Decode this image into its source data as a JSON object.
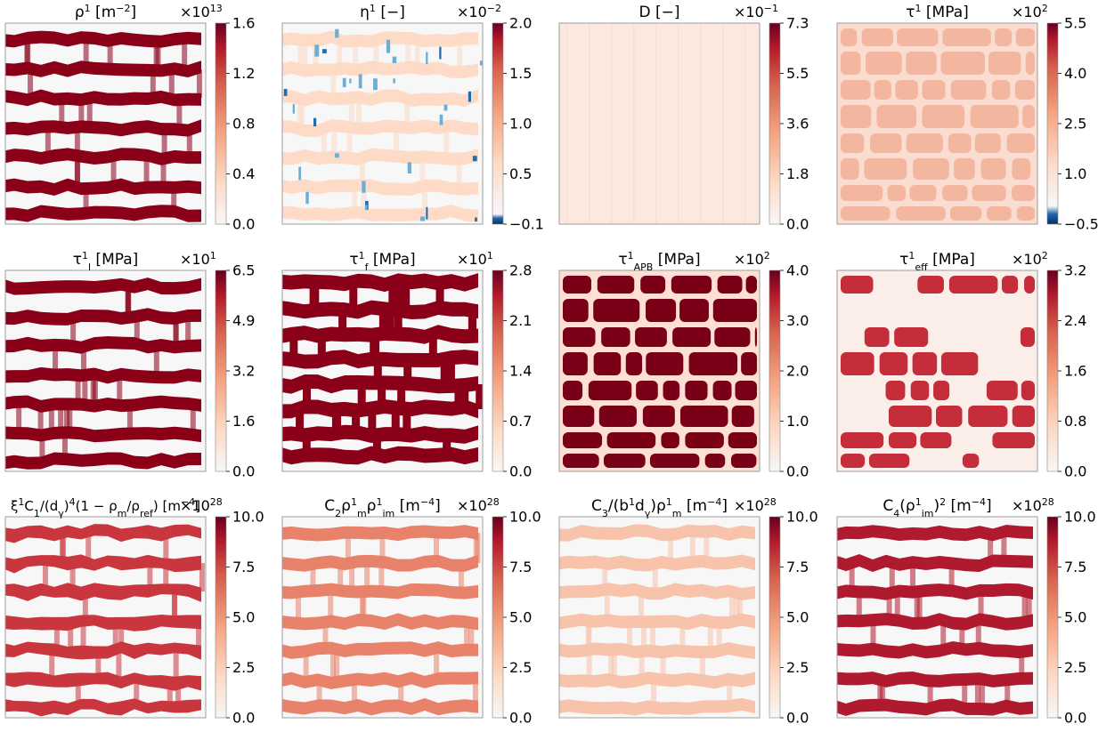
{
  "colors": {
    "dark_red": "#8b0019",
    "mid_red": "#c9363e",
    "light_red": "#f4a582",
    "pale": "#fddbc7",
    "blank": "#f7f7f7",
    "neg_blue": "#1f6eb0",
    "frame": "#9e9e9e"
  },
  "chart_data": [
    {
      "type": "heatmap",
      "title_parts": [
        [
          "ρ"
        ],
        [
          "1",
          "sup"
        ],
        [
          " [m"
        ],
        [
          "−2",
          "sup"
        ],
        [
          "]"
        ]
      ],
      "multiplier": "×10",
      "multiplier_exp": "13",
      "ticks": [
        "0.0",
        "0.4",
        "0.8",
        "1.2",
        "1.6"
      ],
      "vmin": 0,
      "vmax": 1.6,
      "pattern": "bands",
      "band_color": "dark_red",
      "diverging": false
    },
    {
      "type": "heatmap",
      "title_parts": [
        [
          "η"
        ],
        [
          "1",
          "sup"
        ],
        [
          " [−]"
        ]
      ],
      "multiplier": "×10",
      "multiplier_exp": "−2",
      "ticks": [
        "−0.1",
        "0.5",
        "1.0",
        "1.5",
        "2.0"
      ],
      "vmin": -0.1,
      "vmax": 2.0,
      "pattern": "bands",
      "band_color": "pale",
      "blue_specks": true,
      "diverging": true
    },
    {
      "type": "heatmap",
      "title_parts": [
        [
          "D [−]"
        ]
      ],
      "multiplier": "×10",
      "multiplier_exp": "−1",
      "ticks": [
        "0.0",
        "1.8",
        "3.6",
        "5.5",
        "7.3"
      ],
      "vmin": 0,
      "vmax": 7.3,
      "pattern": "uniform",
      "fill_color": "#fbe8df",
      "diverging": false
    },
    {
      "type": "heatmap",
      "title_parts": [
        [
          "τ"
        ],
        [
          "1",
          "sup"
        ],
        [
          " [MPa]"
        ]
      ],
      "multiplier": "×10",
      "multiplier_exp": "2",
      "ticks": [
        "−0.5",
        "1.0",
        "2.5",
        "4.0",
        "5.5"
      ],
      "vmin": -0.5,
      "vmax": 5.5,
      "pattern": "cells",
      "cell_color": "#f3b7a0",
      "gap_color": "#fbdcd0",
      "diverging": true
    },
    {
      "type": "heatmap",
      "title_parts": [
        [
          "τ"
        ],
        [
          "1",
          "sup-l"
        ],
        [
          "l",
          "sub"
        ],
        [
          " [MPa]"
        ]
      ],
      "multiplier": "×10",
      "multiplier_exp": "1",
      "ticks": [
        "0.0",
        "1.6",
        "3.2",
        "4.9",
        "6.5"
      ],
      "vmin": 0,
      "vmax": 6.5,
      "pattern": "bands",
      "band_color": "dark_red",
      "diverging": false
    },
    {
      "type": "heatmap",
      "title_parts": [
        [
          "τ"
        ],
        [
          "1",
          "sup-l"
        ],
        [
          "f",
          "sub"
        ],
        [
          " [MPa]"
        ]
      ],
      "multiplier": "×10",
      "multiplier_exp": "1",
      "ticks": [
        "0.0",
        "0.7",
        "1.4",
        "2.1",
        "2.8"
      ],
      "vmin": 0,
      "vmax": 2.8,
      "pattern": "bands_thick",
      "band_color": "dark_red",
      "diverging": false
    },
    {
      "type": "heatmap",
      "title_parts": [
        [
          "τ"
        ],
        [
          "1",
          "sup-l"
        ],
        [
          "APB",
          "sub"
        ],
        [
          " [MPa]"
        ]
      ],
      "multiplier": "×10",
      "multiplier_exp": "2",
      "ticks": [
        "0.0",
        "1.0",
        "2.0",
        "3.0",
        "4.0"
      ],
      "vmin": 0,
      "vmax": 4.0,
      "pattern": "cells",
      "cell_color": "#7a0018",
      "gap_color": "#fde0d3",
      "diverging": false
    },
    {
      "type": "heatmap",
      "title_parts": [
        [
          "τ"
        ],
        [
          "1",
          "sup-l"
        ],
        [
          "eff",
          "sub"
        ],
        [
          " [MPa]"
        ]
      ],
      "multiplier": "×10",
      "multiplier_exp": "2",
      "ticks": [
        "0.0",
        "0.8",
        "1.6",
        "2.4",
        "3.2"
      ],
      "vmin": 0,
      "vmax": 3.2,
      "pattern": "cells_sparse",
      "cell_color": "#c52d3a",
      "gap_color": "#fbeee8",
      "diverging": false
    },
    {
      "type": "heatmap",
      "title_parts": [
        [
          "ξ"
        ],
        [
          "1",
          "sup"
        ],
        [
          "C"
        ],
        [
          "1",
          "sub"
        ],
        [
          "/(d"
        ],
        [
          "γ",
          "sub"
        ],
        [
          ")"
        ],
        [
          "4",
          "sup"
        ],
        [
          "(1 − ρ"
        ],
        [
          "m",
          "sub"
        ],
        [
          "/ρ"
        ],
        [
          "ref",
          "sub"
        ],
        [
          ") [m"
        ],
        [
          "−4",
          "sup"
        ],
        [
          "]"
        ]
      ],
      "multiplier": "×10",
      "multiplier_exp": "28",
      "ticks": [
        "0.0",
        "2.5",
        "5.0",
        "7.5",
        "10.0"
      ],
      "vmin": 0,
      "vmax": 10,
      "pattern": "bands_jagged",
      "band_color": "mid_red",
      "diverging": false
    },
    {
      "type": "heatmap",
      "title_parts": [
        [
          "C"
        ],
        [
          "2",
          "sub"
        ],
        [
          "ρ"
        ],
        [
          "1",
          "sup-l"
        ],
        [
          "m",
          "sub"
        ],
        [
          "ρ"
        ],
        [
          "1",
          "sup-l"
        ],
        [
          "im",
          "sub"
        ],
        [
          " [m"
        ],
        [
          "−4",
          "sup"
        ],
        [
          "]"
        ]
      ],
      "multiplier": "×10",
      "multiplier_exp": "28",
      "ticks": [
        "0.0",
        "2.5",
        "5.0",
        "7.5",
        "10.0"
      ],
      "vmin": 0,
      "vmax": 10,
      "pattern": "bands",
      "band_color": "#e8826a",
      "diverging": false
    },
    {
      "type": "heatmap",
      "title_parts": [
        [
          "C"
        ],
        [
          "3",
          "sub"
        ],
        [
          "/(b"
        ],
        [
          "1",
          "sup"
        ],
        [
          "d"
        ],
        [
          "γ",
          "sub"
        ],
        [
          ")ρ"
        ],
        [
          "1",
          "sup-l"
        ],
        [
          "m",
          "sub"
        ],
        [
          " [m"
        ],
        [
          "−4",
          "sup"
        ],
        [
          "]"
        ]
      ],
      "multiplier": "×10",
      "multiplier_exp": "28",
      "ticks": [
        "0.0",
        "2.5",
        "5.0",
        "7.5",
        "10.0"
      ],
      "vmin": 0,
      "vmax": 10,
      "pattern": "bands",
      "band_color": "#f7c3ab",
      "diverging": false
    },
    {
      "type": "heatmap",
      "title_parts": [
        [
          "C"
        ],
        [
          "4",
          "sub"
        ],
        [
          "(ρ"
        ],
        [
          "1",
          "sup-l"
        ],
        [
          "im",
          "sub"
        ],
        [
          ")"
        ],
        [
          "2",
          "sup"
        ],
        [
          " [m"
        ],
        [
          "−4",
          "sup"
        ],
        [
          "]"
        ]
      ],
      "multiplier": "×10",
      "multiplier_exp": "28",
      "ticks": [
        "0.0",
        "2.5",
        "5.0",
        "7.5",
        "10.0"
      ],
      "vmin": 0,
      "vmax": 10,
      "pattern": "bands",
      "band_color": "#b01a2e",
      "diverging": false
    }
  ]
}
